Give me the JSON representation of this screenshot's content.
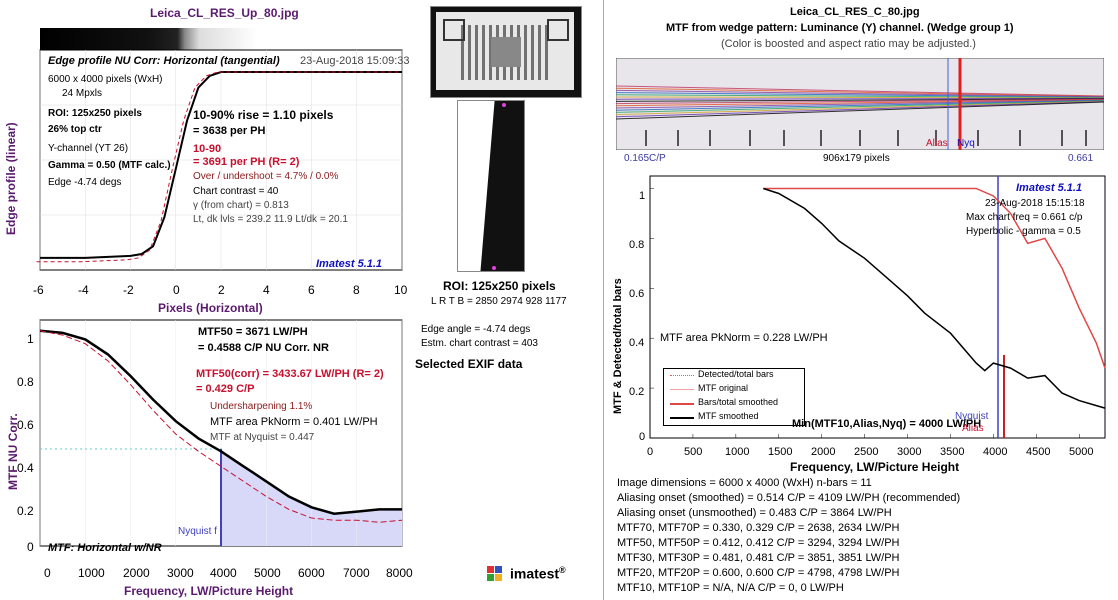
{
  "left": {
    "title": "Leica_CL_RES_Up_80.jpg",
    "edge_plot": {
      "plot_title": "Edge profile  NU Corr: Horizontal (tangential)",
      "date": "23-Aug-2018 15:09:33",
      "xlabel": "Pixels (Horizontal)",
      "ylabel": "Edge profile (linear)",
      "xticks": [
        "-6",
        "-4",
        "-2",
        "0",
        "2",
        "4",
        "6",
        "8",
        "10"
      ],
      "info_lines": [
        "6000 x 4000 pixels (WxH)",
        "24 Mpxls"
      ],
      "roi": "ROI:  125x250 pixels",
      "ctr": "26% top ctr",
      "channel": "Y-channel  (YT 26)",
      "gamma": "Gamma = 0.50 (MTF calc.)",
      "edge": "Edge  -4.74 degs",
      "rise": "10-90% rise = 1.10 pixels",
      "per_ph": "=   3638 per PH",
      "corr_label": "10-90",
      "corr_per_ph": "=   3691 per PH (R=   2)",
      "overshoot": "Over / undershoot =  4.7% /  0.0%",
      "contrast": "Chart contrast = 40",
      "gamma_chart": "γ (from chart) = 0.813",
      "levels": "Lt, dk lvls = 239.2  11.9  Lt/dk = 20.1",
      "version": "Imatest 5.1.1"
    },
    "mtf_plot": {
      "xlabel": "Frequency, LW/Picture Height",
      "ylabel": "MTF  NU Corr.",
      "xticks": [
        "0",
        "1000",
        "2000",
        "3000",
        "4000",
        "5000",
        "6000",
        "7000",
        "8000"
      ],
      "yticks": [
        "0",
        "0.2",
        "0.4",
        "0.6",
        "0.8",
        "1"
      ],
      "mtf50": "MTF50 = 3671 LW/PH",
      "mtf50_cp": "= 0.4588 C/P  NU Corr.  NR",
      "mtf50corr": "MTF50(corr) = 3433.67 LW/PH  (R=  2)",
      "mtf50corr_cp": "= 0.429 C/P",
      "undersharp": "Undersharpening  1.1%",
      "area": "MTF area PkNorm = 0.401 LW/PH",
      "nyquist_val": "MTF at Nyquist = 0.447",
      "nyquist_label": "Nyquist f",
      "caption": "MTF: Horizontal w/NR"
    }
  },
  "middle": {
    "roi": "ROI:  125x250 pixels",
    "lrtb": "L R  T B = 2850 2974  928 1177",
    "edge_angle": "Edge angle = -4.74 degs",
    "chart_contrast": "Estm. chart contrast = 403",
    "exif": "Selected EXIF data",
    "logo": "imatest",
    "logo_reg": "®"
  },
  "right": {
    "title": "Leica_CL_RES_C_80.jpg",
    "subtitle": "MTF from wedge pattern:  Luminance (Y) channel.  (Wedge group 1)",
    "note": "(Color is boosted and aspect ratio may be adjusted.)",
    "wedge_left": "0.165C/P",
    "wedge_mid": "906x179 pixels",
    "wedge_right": "0.661",
    "alias_label": "Alias",
    "nyq_label": "Nyq",
    "version": "Imatest 5.1.1",
    "date": "23-Aug-2018 15:15:18",
    "max_freq": "Max chart freq = 0.661 c/p",
    "hyperbolic": "Hyperbolic -  gamma = 0.5",
    "area": "MTF area PkNorm = 0.228 LW/PH",
    "min_label": "Min(MTF10,Alias,Nyq) = 4000 LW/PH",
    "nyquist_label": "Nyquist",
    "alias_lbl2": "Alias",
    "xlabel": "Frequency, LW/Picture Height",
    "ylabel": "MTF & Detected/total bars",
    "xticks": [
      "0",
      "500",
      "1000",
      "1500",
      "2000",
      "2500",
      "3000",
      "3500",
      "4000",
      "4500",
      "5000"
    ],
    "yticks": [
      "0",
      "0.2",
      "0.4",
      "0.6",
      "0.8",
      "1"
    ],
    "legend": [
      "Detected/total bars",
      "MTF original",
      "Bars/total smoothed",
      "MTF smoothed"
    ],
    "results": [
      "Image dimensions = 6000 x 4000 (WxH)   n-bars = 11",
      "Aliasing onset (smoothed) = 0.514 C/P  = 4109 LW/PH (recommended)",
      "Aliasing onset (unsmoothed) = 0.483 C/P  = 3864 LW/PH",
      "MTF70, MTF70P = 0.330, 0.329 C/P  = 2638, 2634 LW/PH",
      "MTF50, MTF50P = 0.412, 0.412 C/P  = 3294, 3294 LW/PH",
      "MTF30, MTF30P = 0.481, 0.481 C/P  = 3851, 3851 LW/PH",
      "MTF20, MTF20P = 0.600, 0.600 C/P  = 4798, 4798 LW/PH",
      "MTF10, MTF10P = N/A, N/A C/P  = 0, 0 LW/PH"
    ]
  },
  "colors": {
    "axis_label": "#5a1a6e",
    "red": "#d02020",
    "blue_fill": "#d8d8f8",
    "nyquist": "#4040c0"
  },
  "chart_data": [
    {
      "type": "line",
      "xlabel": "Pixels (Horizontal)",
      "ylabel": "Edge profile (linear)",
      "xlim": [
        -6,
        10
      ],
      "series": [
        {
          "x": [
            -6,
            -4,
            -2,
            -1.5,
            -1,
            -0.5,
            0,
            0.5,
            1,
            1.5,
            2,
            3,
            4,
            6,
            8,
            10
          ],
          "y": [
            0.04,
            0.04,
            0.05,
            0.06,
            0.1,
            0.25,
            0.5,
            0.75,
            0.92,
            0.98,
            1.0,
            1.0,
            1.0,
            1.0,
            1.0,
            1.0
          ]
        }
      ]
    },
    {
      "type": "line",
      "xlabel": "Frequency, LW/Picture Height",
      "ylabel": "MTF  NU Corr.",
      "xlim": [
        0,
        8000
      ],
      "ylim": [
        0,
        1.05
      ],
      "series": [
        {
          "x": [
            0,
            500,
            1000,
            1500,
            2000,
            2500,
            3000,
            3500,
            4000,
            4500,
            5000,
            5500,
            6000,
            6500,
            7000,
            7500,
            8000
          ],
          "y": [
            1.0,
            0.99,
            0.96,
            0.89,
            0.79,
            0.68,
            0.58,
            0.5,
            0.44,
            0.37,
            0.3,
            0.23,
            0.18,
            0.15,
            0.16,
            0.17,
            0.17
          ]
        },
        {
          "x": [
            0,
            500,
            1000,
            1500,
            2000,
            2500,
            3000,
            3500,
            4000,
            4500,
            5000,
            5500,
            6000,
            6500,
            7000,
            7500,
            8000
          ],
          "y": [
            1.0,
            0.98,
            0.94,
            0.86,
            0.75,
            0.63,
            0.52,
            0.44,
            0.37,
            0.3,
            0.23,
            0.17,
            0.13,
            0.12,
            0.12,
            0.11,
            0.12
          ]
        }
      ]
    },
    {
      "type": "line",
      "xlabel": "Frequency, LW/Picture Height",
      "ylabel": "MTF & Detected/total bars",
      "xlim": [
        0,
        5300
      ],
      "ylim": [
        0,
        1.05
      ],
      "series": [
        {
          "name": "Bars/total smoothed",
          "x": [
            1320,
            1500,
            2000,
            2500,
            3000,
            3500,
            3600,
            3800,
            4000,
            4200,
            4400,
            4600,
            4800,
            5000,
            5200,
            5300
          ],
          "y": [
            1.0,
            1.0,
            1.0,
            1.0,
            1.0,
            1.0,
            1.0,
            1.0,
            0.97,
            0.9,
            0.78,
            0.8,
            0.68,
            0.52,
            0.38,
            0.28
          ]
        },
        {
          "name": "MTF smoothed",
          "x": [
            1320,
            1500,
            1800,
            2000,
            2200,
            2500,
            2800,
            3000,
            3200,
            3500,
            3800,
            3900,
            4000,
            4200,
            4400,
            4600,
            4800,
            5000,
            5200,
            5300
          ],
          "y": [
            1.0,
            0.98,
            0.92,
            0.86,
            0.79,
            0.72,
            0.63,
            0.57,
            0.5,
            0.42,
            0.3,
            0.27,
            0.3,
            0.28,
            0.24,
            0.25,
            0.18,
            0.15,
            0.13,
            0.12
          ]
        }
      ]
    }
  ]
}
